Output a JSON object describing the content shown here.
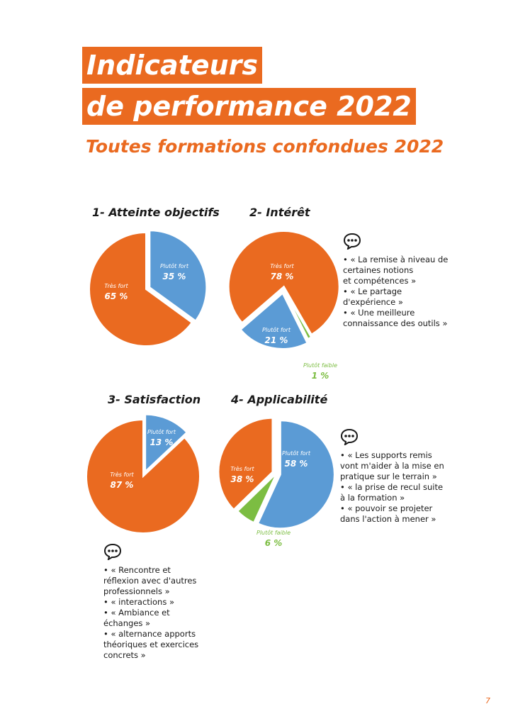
{
  "header": {
    "title_line1": "Indicateurs",
    "title_line2": "de performance 2022",
    "subtitle": "Toutes formations confondues 2022"
  },
  "colors": {
    "orange": "#ea6a20",
    "blue": "#5b9bd5",
    "green": "#7cbd42"
  },
  "chart_data": [
    {
      "type": "pie",
      "title": "1-  Atteinte objectifs",
      "slices": [
        {
          "label": "Plutôt fort",
          "value": 35,
          "display": "35 %",
          "color": "#5b9bd5"
        },
        {
          "label": "Très fort",
          "value": 65,
          "display": "65 %",
          "color": "#ea6a20"
        }
      ]
    },
    {
      "type": "pie",
      "title": "2- Intérêt",
      "slices": [
        {
          "label": "Plutôt faible",
          "value": 1,
          "display": "1 %",
          "color": "#7cbd42"
        },
        {
          "label": "Plutôt fort",
          "value": 21,
          "display": "21 %",
          "color": "#5b9bd5"
        },
        {
          "label": "Très fort",
          "value": 78,
          "display": "78 %",
          "color": "#ea6a20"
        }
      ]
    },
    {
      "type": "pie",
      "title": "3- Satisfaction",
      "slices": [
        {
          "label": "Plutôt fort",
          "value": 13,
          "display": "13 %",
          "color": "#5b9bd5"
        },
        {
          "label": "Très fort",
          "value": 87,
          "display": "87 %",
          "color": "#ea6a20"
        }
      ]
    },
    {
      "type": "pie",
      "title": "4- Applicabilité",
      "slices": [
        {
          "label": "Plutôt fort",
          "value": 58,
          "display": "58 %",
          "color": "#5b9bd5"
        },
        {
          "label": "Plutôt faible",
          "value": 6,
          "display": "6 %",
          "color": "#7cbd42"
        },
        {
          "label": "Très fort",
          "value": 38,
          "display": "38 %",
          "color": "#ea6a20"
        }
      ]
    }
  ],
  "comments": {
    "interet": [
      "• « La remise à niveau de\ncertaines notions\net compétences »",
      "• « Le partage\nd'expérience »",
      "• « Une meilleure\nconnaissance des outils »"
    ],
    "applicabilite": [
      "• « Les supports remis\nvont m'aider à la mise en\npratique sur le terrain »",
      "• « la prise de recul suite\nà la formation »",
      "• « pouvoir se projeter\ndans l'action à mener »"
    ],
    "satisfaction": [
      "• « Rencontre et\nréflexion avec d'autres\nprofessionnels »",
      "• « interactions »",
      "• « Ambiance et\néchanges »",
      "• « alternance apports\nthéoriques et exercices\nconcrets »"
    ]
  },
  "page_number": "7"
}
